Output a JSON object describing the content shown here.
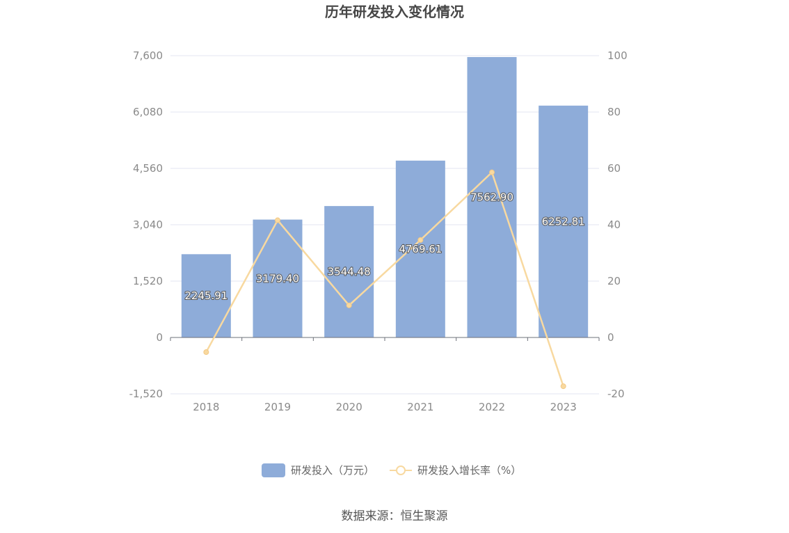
{
  "chart_data": {
    "type": "bar",
    "title": "历年研发投入变化情况",
    "categories": [
      "2018",
      "2019",
      "2020",
      "2021",
      "2022",
      "2023"
    ],
    "series": [
      {
        "name": "研发投入（万元）",
        "type": "bar",
        "axis": "left",
        "values": [
          2245.91,
          3179.4,
          3544.48,
          4769.61,
          7562.9,
          6252.81
        ],
        "labels": [
          "2245.91",
          "3179.40",
          "3544.48",
          "4769.61",
          "7562.90",
          "6252.81"
        ],
        "color": "#8eacd9"
      },
      {
        "name": "研发投入增长率（%）",
        "type": "line",
        "axis": "right",
        "values": [
          -5.2,
          41.6,
          11.4,
          34.6,
          58.6,
          -17.3
        ],
        "color": "#f8d9a0"
      }
    ],
    "y_left": {
      "min": -1520,
      "max": 7600,
      "ticks": [
        "7,600",
        "6,080",
        "4,560",
        "3,040",
        "1,520",
        "0",
        "-1,520"
      ],
      "tick_values": [
        7600,
        6080,
        4560,
        3040,
        1520,
        0,
        -1520
      ]
    },
    "y_right": {
      "min": -20,
      "max": 100,
      "ticks": [
        "100",
        "80",
        "60",
        "40",
        "20",
        "0",
        "-20"
      ],
      "tick_values": [
        100,
        80,
        60,
        40,
        20,
        0,
        -20
      ]
    },
    "grid": true,
    "legend_position": "bottom-center"
  },
  "source_text": "数据来源：恒生聚源"
}
